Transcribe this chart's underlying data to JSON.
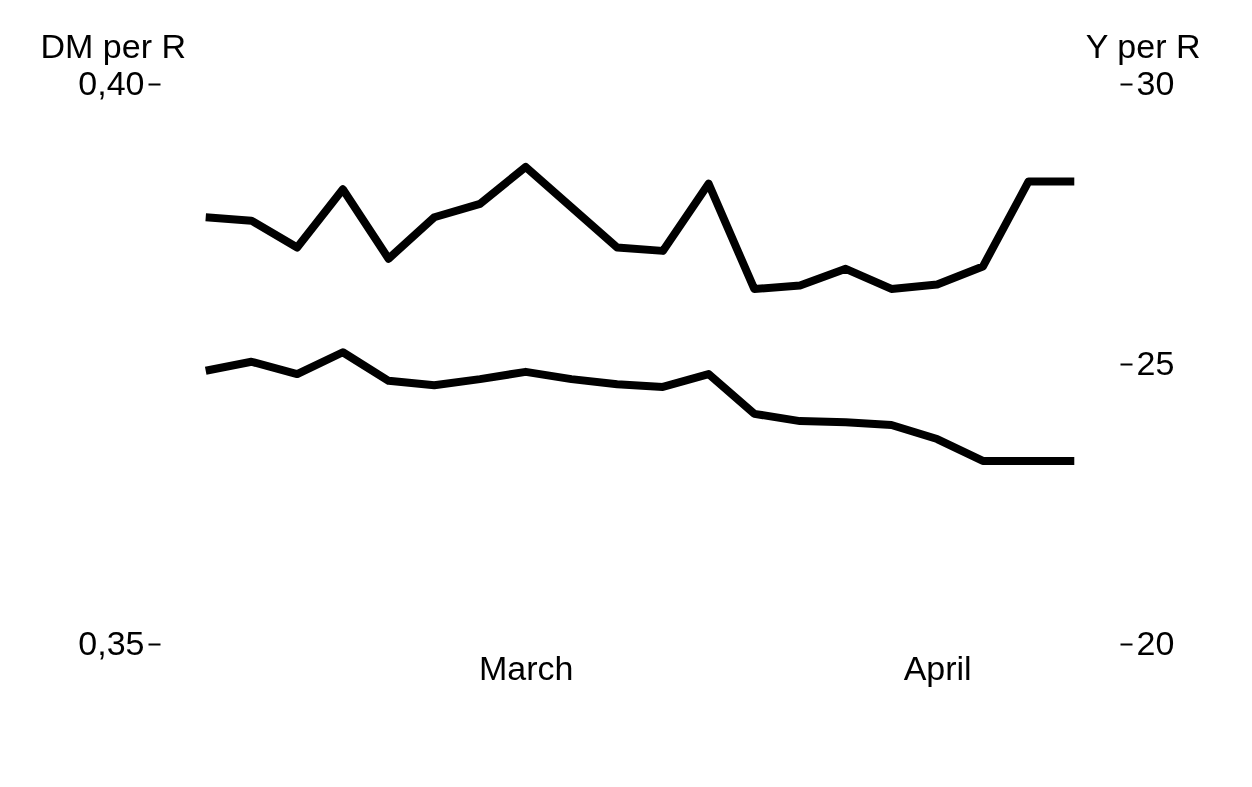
{
  "chart_data": {
    "type": "line",
    "ylabel": "DM per R",
    "y2label": "Y per R",
    "categories": [
      null,
      null,
      null,
      null,
      null,
      null,
      null,
      "March",
      null,
      null,
      null,
      null,
      null,
      null,
      null,
      null,
      "April",
      null,
      null,
      null
    ],
    "ylim": [
      0.35,
      0.4
    ],
    "yticks": [
      {
        "value": 0.35,
        "label": "0,35"
      },
      {
        "value": 0.4,
        "label": "0,40"
      }
    ],
    "y2lim": [
      20,
      30
    ],
    "y2ticks": [
      20,
      25,
      30
    ],
    "series": [
      {
        "color": "#000000",
        "values": [
          0.3881,
          0.3878,
          0.3854,
          0.3906,
          0.3844,
          0.3881,
          0.3893,
          0.3926,
          0.389,
          0.3854,
          0.3851,
          0.3911,
          0.3817,
          0.382,
          0.3835,
          0.3817,
          0.3821,
          0.3837,
          0.3913,
          0.3913
        ]
      },
      {
        "color": "#000000",
        "axis": "y2",
        "values": [
          24.88,
          25.04,
          24.82,
          25.21,
          24.7,
          24.62,
          24.73,
          24.86,
          24.73,
          24.64,
          24.59,
          24.82,
          24.11,
          23.98,
          23.96,
          23.91,
          23.66,
          23.27,
          23.27,
          23.27
        ]
      }
    ]
  }
}
